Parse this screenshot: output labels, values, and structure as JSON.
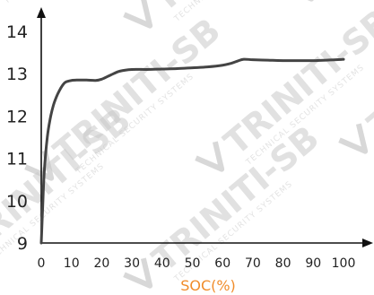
{
  "watermark": {
    "text": "TRINITI-SB",
    "subtext": "TECHNICAL SECURITY SYSTEMS"
  },
  "colors": {
    "axis": "#111111",
    "line": "#444444",
    "xlabel": "#f08c2a",
    "watermark": "#c8c8c8"
  },
  "chart_data": {
    "type": "line",
    "title": "",
    "xlabel": "SOC(%)",
    "ylabel": "",
    "xlim": [
      0,
      100
    ],
    "ylim": [
      9,
      14
    ],
    "xticks": [
      "0",
      "10",
      "20",
      "30",
      "40",
      "50",
      "60",
      "70",
      "80",
      "90",
      "100"
    ],
    "yticks": [
      "9",
      "10",
      "11",
      "12",
      "13",
      "14"
    ],
    "grid": false,
    "series": [
      {
        "x": [
          0,
          0.5,
          1,
          2,
          3,
          4,
          5,
          6,
          7,
          8,
          10,
          12,
          15,
          18,
          20,
          23,
          26,
          30,
          35,
          40,
          45,
          50,
          55,
          60,
          63,
          65,
          67,
          70,
          75,
          80,
          90,
          100
        ],
        "y": [
          9.0,
          9.9,
          10.7,
          11.5,
          11.95,
          12.25,
          12.45,
          12.6,
          12.72,
          12.8,
          12.84,
          12.85,
          12.85,
          12.84,
          12.87,
          12.97,
          13.06,
          13.1,
          13.1,
          13.11,
          13.12,
          13.14,
          13.16,
          13.2,
          13.25,
          13.3,
          13.34,
          13.33,
          13.32,
          13.31,
          13.31,
          13.34
        ]
      }
    ]
  }
}
